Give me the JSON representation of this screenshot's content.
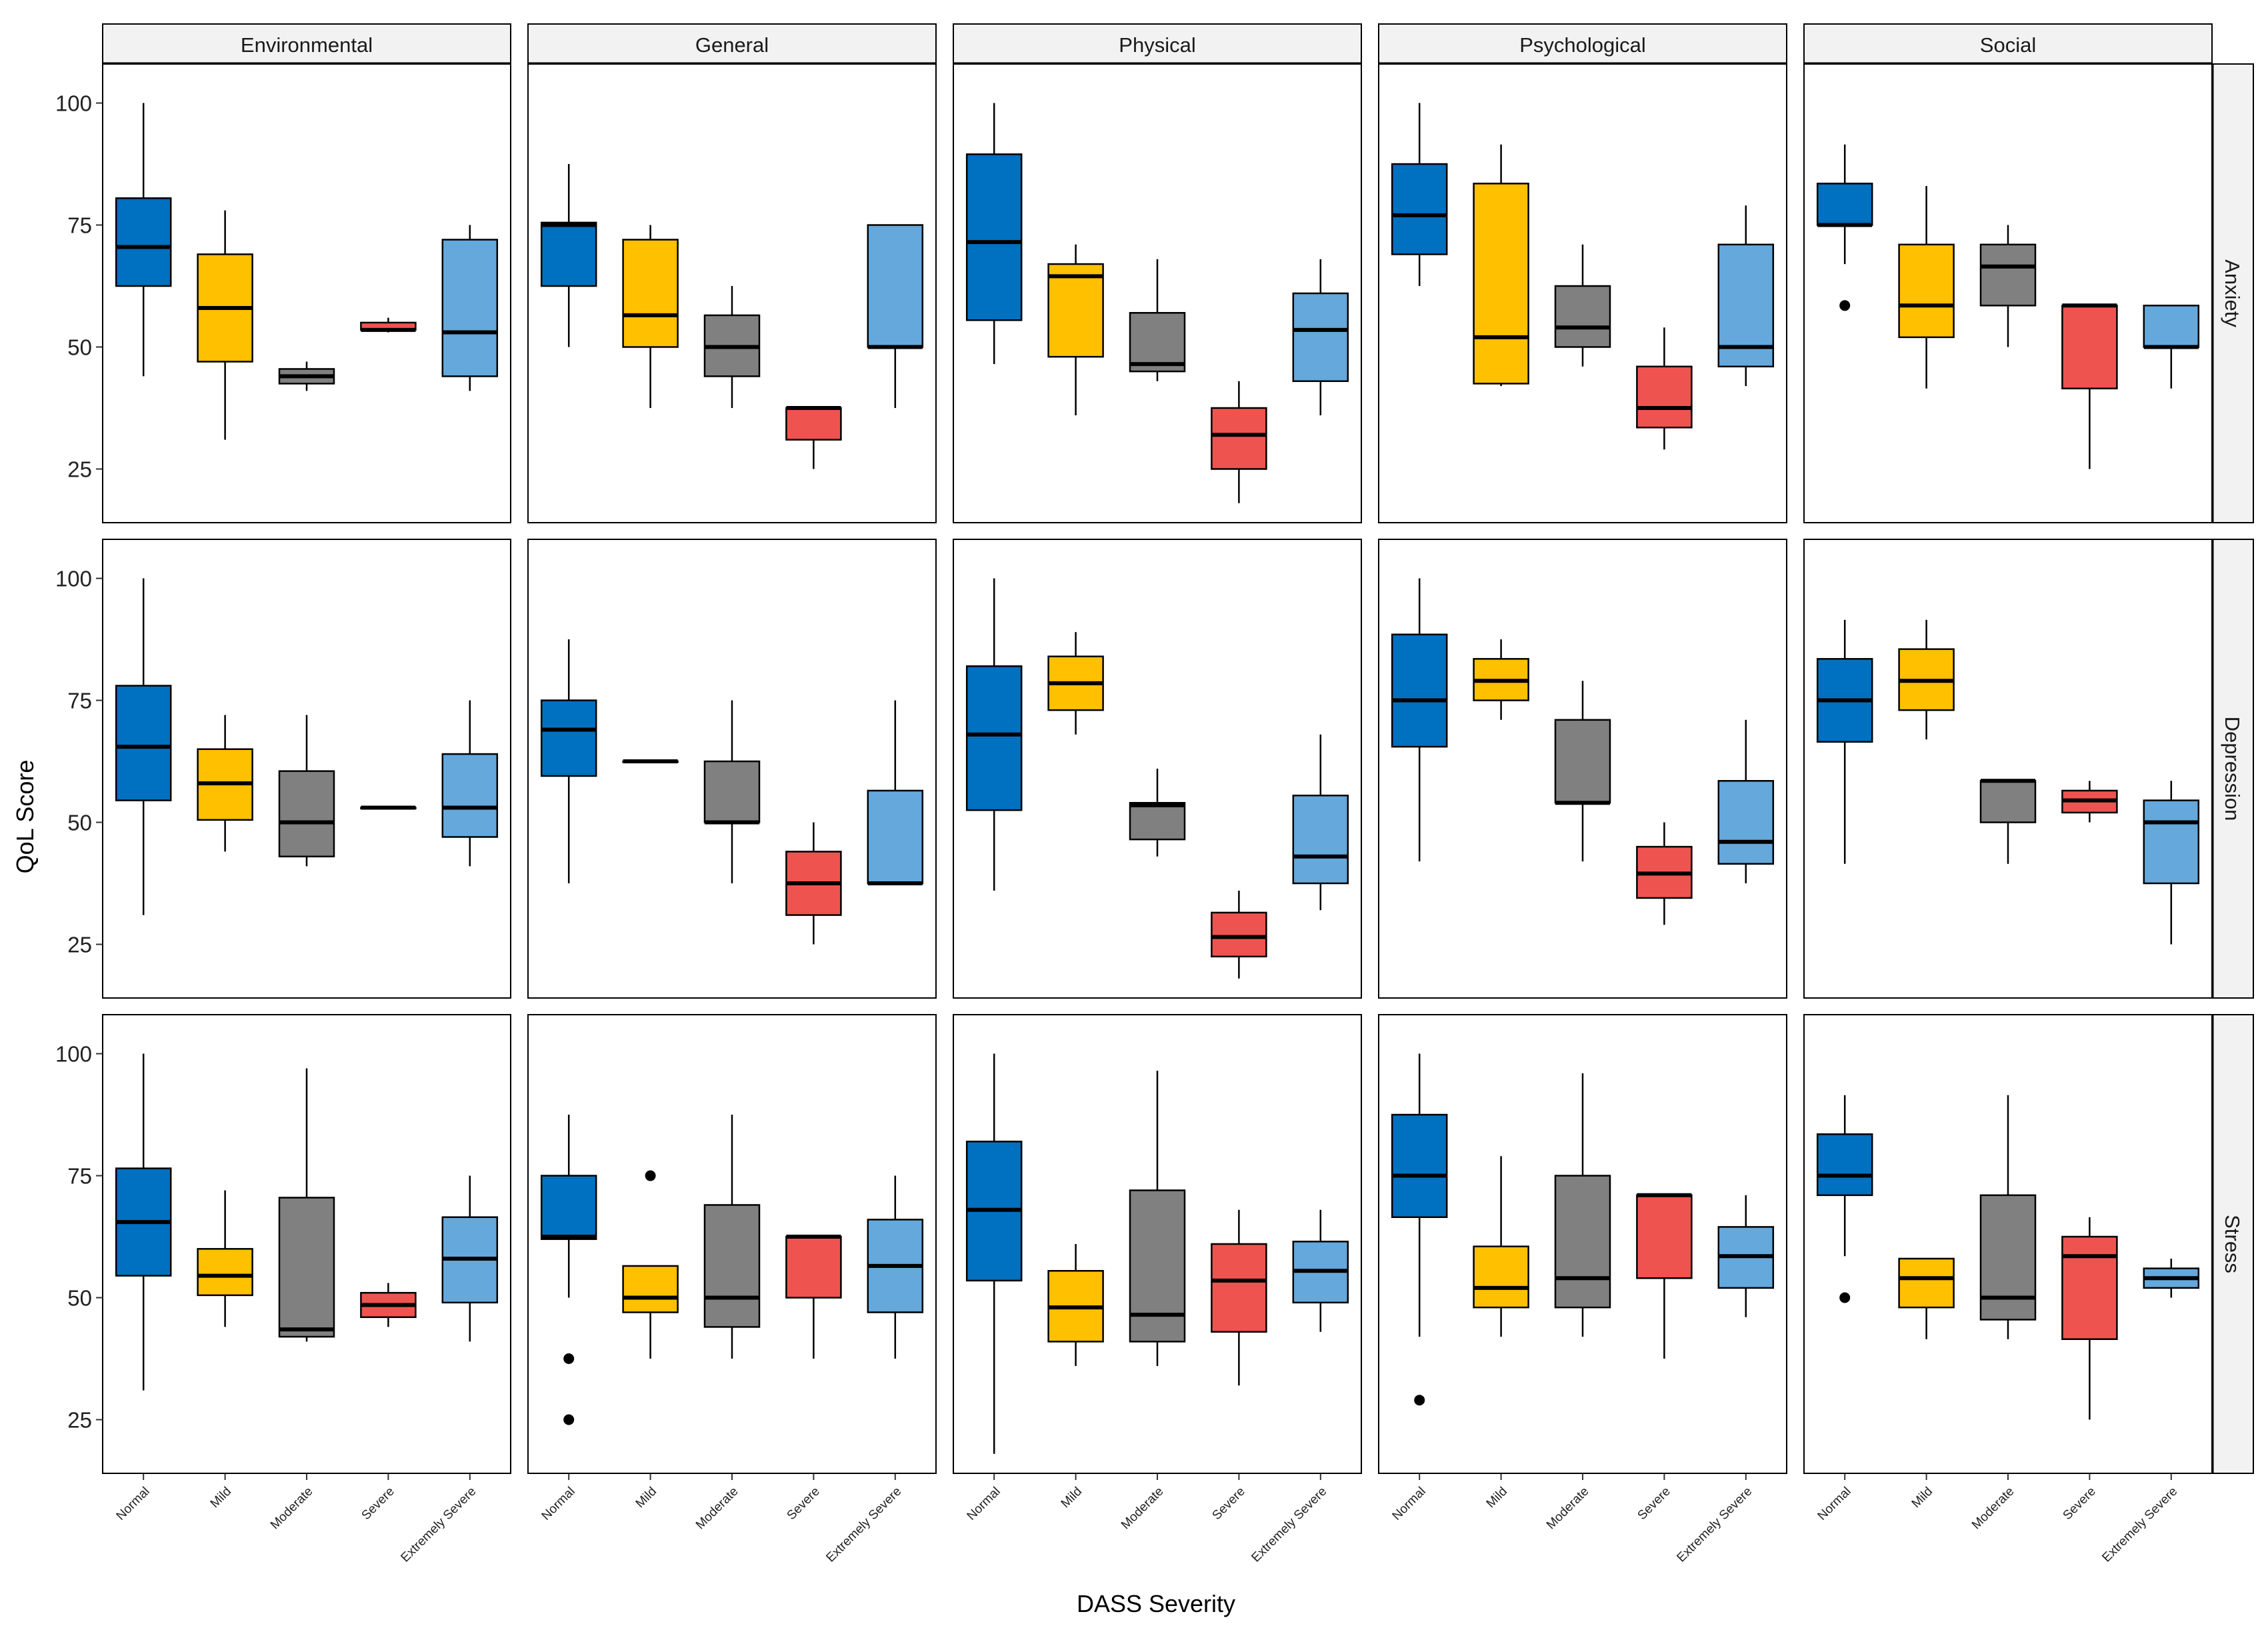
{
  "chart_data": {
    "type": "boxplot",
    "title": "",
    "xlabel": "DASS Severity",
    "ylabel": "QoL Score",
    "ylim": [
      14,
      108
    ],
    "yticks": [
      25,
      50,
      75,
      100
    ],
    "categories": [
      "Normal",
      "Mild",
      "Moderate",
      "Severe",
      "Extremely Severe"
    ],
    "colors": [
      "#0070C0",
      "#FFC000",
      "#808080",
      "#EF5350",
      "#64A8DC"
    ],
    "facet_cols": [
      "Environmental",
      "General",
      "Physical",
      "Psychological",
      "Social"
    ],
    "facet_rows": [
      "Anxiety",
      "Depression",
      "Stress"
    ],
    "panels": [
      {
        "row": "Anxiety",
        "col": "Environmental",
        "boxes": [
          {
            "whisker_low": 44,
            "q1": 62.5,
            "median": 70.5,
            "q3": 80.5,
            "whisker_high": 100,
            "outliers": []
          },
          {
            "whisker_low": 31,
            "q1": 47,
            "median": 58,
            "q3": 69,
            "whisker_high": 78,
            "outliers": []
          },
          {
            "whisker_low": 41,
            "q1": 42.5,
            "median": 44,
            "q3": 45.5,
            "whisker_high": 47,
            "outliers": []
          },
          {
            "whisker_low": 53,
            "q1": 53.5,
            "median": 53.5,
            "q3": 55,
            "whisker_high": 56,
            "outliers": []
          },
          {
            "whisker_low": 41,
            "q1": 44,
            "median": 53,
            "q3": 72,
            "whisker_high": 75,
            "outliers": []
          }
        ]
      },
      {
        "row": "Anxiety",
        "col": "General",
        "boxes": [
          {
            "whisker_low": 50,
            "q1": 62.5,
            "median": 75,
            "q3": 75.5,
            "whisker_high": 87.5,
            "outliers": []
          },
          {
            "whisker_low": 37.5,
            "q1": 50,
            "median": 56.5,
            "q3": 72,
            "whisker_high": 75,
            "outliers": []
          },
          {
            "whisker_low": 37.5,
            "q1": 44,
            "median": 50,
            "q3": 56.5,
            "whisker_high": 62.5,
            "outliers": []
          },
          {
            "whisker_low": 25,
            "q1": 31,
            "median": 37.5,
            "q3": 37.5,
            "whisker_high": 37.5,
            "outliers": []
          },
          {
            "whisker_low": 37.5,
            "q1": 50,
            "median": 50,
            "q3": 75,
            "whisker_high": 75,
            "outliers": []
          }
        ]
      },
      {
        "row": "Anxiety",
        "col": "Physical",
        "boxes": [
          {
            "whisker_low": 46.5,
            "q1": 55.5,
            "median": 71.5,
            "q3": 89.5,
            "whisker_high": 100,
            "outliers": []
          },
          {
            "whisker_low": 36,
            "q1": 48,
            "median": 64.5,
            "q3": 67,
            "whisker_high": 71,
            "outliers": []
          },
          {
            "whisker_low": 43,
            "q1": 45,
            "median": 46.5,
            "q3": 57,
            "whisker_high": 68,
            "outliers": []
          },
          {
            "whisker_low": 18,
            "q1": 25,
            "median": 32,
            "q3": 37.5,
            "whisker_high": 43,
            "outliers": []
          },
          {
            "whisker_low": 36,
            "q1": 43,
            "median": 53.5,
            "q3": 61,
            "whisker_high": 68,
            "outliers": []
          }
        ]
      },
      {
        "row": "Anxiety",
        "col": "Psychological",
        "boxes": [
          {
            "whisker_low": 62.5,
            "q1": 69,
            "median": 77,
            "q3": 87.5,
            "whisker_high": 100,
            "outliers": []
          },
          {
            "whisker_low": 42,
            "q1": 42.5,
            "median": 52,
            "q3": 83.5,
            "whisker_high": 91.5,
            "outliers": []
          },
          {
            "whisker_low": 46,
            "q1": 50,
            "median": 54,
            "q3": 62.5,
            "whisker_high": 71,
            "outliers": []
          },
          {
            "whisker_low": 29,
            "q1": 33.5,
            "median": 37.5,
            "q3": 46,
            "whisker_high": 54,
            "outliers": []
          },
          {
            "whisker_low": 42,
            "q1": 46,
            "median": 50,
            "q3": 71,
            "whisker_high": 79,
            "outliers": []
          }
        ]
      },
      {
        "row": "Anxiety",
        "col": "Social",
        "boxes": [
          {
            "whisker_low": 67,
            "q1": 75,
            "median": 75,
            "q3": 83.5,
            "whisker_high": 91.5,
            "outliers": [
              58.5
            ]
          },
          {
            "whisker_low": 41.5,
            "q1": 52,
            "median": 58.5,
            "q3": 71,
            "whisker_high": 83,
            "outliers": []
          },
          {
            "whisker_low": 50,
            "q1": 58.5,
            "median": 66.5,
            "q3": 71,
            "whisker_high": 75,
            "outliers": []
          },
          {
            "whisker_low": 25,
            "q1": 41.5,
            "median": 58.5,
            "q3": 58.5,
            "whisker_high": 58.5,
            "outliers": []
          },
          {
            "whisker_low": 41.5,
            "q1": 50,
            "median": 50,
            "q3": 58.5,
            "whisker_high": 58.5,
            "outliers": []
          }
        ]
      },
      {
        "row": "Depression",
        "col": "Environmental",
        "boxes": [
          {
            "whisker_low": 31,
            "q1": 54.5,
            "median": 65.5,
            "q3": 78,
            "whisker_high": 100,
            "outliers": []
          },
          {
            "whisker_low": 44,
            "q1": 50.5,
            "median": 58,
            "q3": 65,
            "whisker_high": 72,
            "outliers": []
          },
          {
            "whisker_low": 41,
            "q1": 43,
            "median": 50,
            "q3": 60.5,
            "whisker_high": 72,
            "outliers": []
          },
          {
            "whisker_low": 53,
            "q1": 53,
            "median": 53,
            "q3": 53,
            "whisker_high": 53,
            "outliers": []
          },
          {
            "whisker_low": 41,
            "q1": 47,
            "median": 53,
            "q3": 64,
            "whisker_high": 75,
            "outliers": []
          }
        ]
      },
      {
        "row": "Depression",
        "col": "General",
        "boxes": [
          {
            "whisker_low": 37.5,
            "q1": 59.5,
            "median": 69,
            "q3": 75,
            "whisker_high": 87.5,
            "outliers": []
          },
          {
            "whisker_low": 62.5,
            "q1": 62.5,
            "median": 62.5,
            "q3": 62.5,
            "whisker_high": 62.5,
            "outliers": []
          },
          {
            "whisker_low": 37.5,
            "q1": 50,
            "median": 50,
            "q3": 62.5,
            "whisker_high": 75,
            "outliers": []
          },
          {
            "whisker_low": 25,
            "q1": 31,
            "median": 37.5,
            "q3": 44,
            "whisker_high": 50,
            "outliers": []
          },
          {
            "whisker_low": 37.5,
            "q1": 37.5,
            "median": 37.5,
            "q3": 56.5,
            "whisker_high": 75,
            "outliers": []
          }
        ]
      },
      {
        "row": "Depression",
        "col": "Physical",
        "boxes": [
          {
            "whisker_low": 36,
            "q1": 52.5,
            "median": 68,
            "q3": 82,
            "whisker_high": 100,
            "outliers": []
          },
          {
            "whisker_low": 68,
            "q1": 73,
            "median": 78.5,
            "q3": 84,
            "whisker_high": 89,
            "outliers": []
          },
          {
            "whisker_low": 43,
            "q1": 46.5,
            "median": 53.5,
            "q3": 54,
            "whisker_high": 61,
            "outliers": []
          },
          {
            "whisker_low": 18,
            "q1": 22.5,
            "median": 26.5,
            "q3": 31.5,
            "whisker_high": 36,
            "outliers": []
          },
          {
            "whisker_low": 32,
            "q1": 37.5,
            "median": 43,
            "q3": 55.5,
            "whisker_high": 68,
            "outliers": []
          }
        ]
      },
      {
        "row": "Depression",
        "col": "Psychological",
        "boxes": [
          {
            "whisker_low": 42,
            "q1": 65.5,
            "median": 75,
            "q3": 88.5,
            "whisker_high": 100,
            "outliers": []
          },
          {
            "whisker_low": 71,
            "q1": 75,
            "median": 79,
            "q3": 83.5,
            "whisker_high": 87.5,
            "outliers": []
          },
          {
            "whisker_low": 42,
            "q1": 54,
            "median": 54,
            "q3": 71,
            "whisker_high": 79,
            "outliers": []
          },
          {
            "whisker_low": 29,
            "q1": 34.5,
            "median": 39.5,
            "q3": 45,
            "whisker_high": 50,
            "outliers": []
          },
          {
            "whisker_low": 37.5,
            "q1": 41.5,
            "median": 46,
            "q3": 58.5,
            "whisker_high": 71,
            "outliers": []
          }
        ]
      },
      {
        "row": "Depression",
        "col": "Social",
        "boxes": [
          {
            "whisker_low": 41.5,
            "q1": 66.5,
            "median": 75,
            "q3": 83.5,
            "whisker_high": 91.5,
            "outliers": []
          },
          {
            "whisker_low": 67,
            "q1": 73,
            "median": 79,
            "q3": 85.5,
            "whisker_high": 91.5,
            "outliers": []
          },
          {
            "whisker_low": 41.5,
            "q1": 50,
            "median": 58.5,
            "q3": 58.5,
            "whisker_high": 58.5,
            "outliers": []
          },
          {
            "whisker_low": 50,
            "q1": 52,
            "median": 54.5,
            "q3": 56.5,
            "whisker_high": 58.5,
            "outliers": []
          },
          {
            "whisker_low": 25,
            "q1": 37.5,
            "median": 50,
            "q3": 54.5,
            "whisker_high": 58.5,
            "outliers": []
          }
        ]
      },
      {
        "row": "Stress",
        "col": "Environmental",
        "boxes": [
          {
            "whisker_low": 31,
            "q1": 54.5,
            "median": 65.5,
            "q3": 76.5,
            "whisker_high": 100,
            "outliers": []
          },
          {
            "whisker_low": 44,
            "q1": 50.5,
            "median": 54.5,
            "q3": 60,
            "whisker_high": 72,
            "outliers": []
          },
          {
            "whisker_low": 41,
            "q1": 42,
            "median": 43.5,
            "q3": 70.5,
            "whisker_high": 97,
            "outliers": []
          },
          {
            "whisker_low": 44,
            "q1": 46,
            "median": 48.5,
            "q3": 51,
            "whisker_high": 53,
            "outliers": []
          },
          {
            "whisker_low": 41,
            "q1": 49,
            "median": 58,
            "q3": 66.5,
            "whisker_high": 75,
            "outliers": []
          }
        ]
      },
      {
        "row": "Stress",
        "col": "General",
        "boxes": [
          {
            "whisker_low": 50,
            "q1": 62,
            "median": 62.5,
            "q3": 75,
            "whisker_high": 87.5,
            "outliers": [
              37.5,
              25
            ]
          },
          {
            "whisker_low": 37.5,
            "q1": 47,
            "median": 50,
            "q3": 56.5,
            "whisker_high": 56.5,
            "outliers": [
              75
            ]
          },
          {
            "whisker_low": 37.5,
            "q1": 44,
            "median": 50,
            "q3": 69,
            "whisker_high": 87.5,
            "outliers": []
          },
          {
            "whisker_low": 37.5,
            "q1": 50,
            "median": 62.5,
            "q3": 62.5,
            "whisker_high": 62.5,
            "outliers": []
          },
          {
            "whisker_low": 37.5,
            "q1": 47,
            "median": 56.5,
            "q3": 66,
            "whisker_high": 75,
            "outliers": []
          }
        ]
      },
      {
        "row": "Stress",
        "col": "Physical",
        "boxes": [
          {
            "whisker_low": 18,
            "q1": 53.5,
            "median": 68,
            "q3": 82,
            "whisker_high": 100,
            "outliers": []
          },
          {
            "whisker_low": 36,
            "q1": 41,
            "median": 48,
            "q3": 55.5,
            "whisker_high": 61,
            "outliers": []
          },
          {
            "whisker_low": 36,
            "q1": 41,
            "median": 46.5,
            "q3": 72,
            "whisker_high": 96.5,
            "outliers": []
          },
          {
            "whisker_low": 32,
            "q1": 43,
            "median": 53.5,
            "q3": 61,
            "whisker_high": 68,
            "outliers": []
          },
          {
            "whisker_low": 43,
            "q1": 49,
            "median": 55.5,
            "q3": 61.5,
            "whisker_high": 68,
            "outliers": []
          }
        ]
      },
      {
        "row": "Stress",
        "col": "Psychological",
        "boxes": [
          {
            "whisker_low": 42,
            "q1": 66.5,
            "median": 75,
            "q3": 87.5,
            "whisker_high": 100,
            "outliers": [
              29
            ]
          },
          {
            "whisker_low": 42,
            "q1": 48,
            "median": 52,
            "q3": 60.5,
            "whisker_high": 79,
            "outliers": []
          },
          {
            "whisker_low": 42,
            "q1": 48,
            "median": 54,
            "q3": 75,
            "whisker_high": 96,
            "outliers": []
          },
          {
            "whisker_low": 37.5,
            "q1": 54,
            "median": 71,
            "q3": 71,
            "whisker_high": 71,
            "outliers": []
          },
          {
            "whisker_low": 46,
            "q1": 52,
            "median": 58.5,
            "q3": 64.5,
            "whisker_high": 71,
            "outliers": []
          }
        ]
      },
      {
        "row": "Stress",
        "col": "Social",
        "boxes": [
          {
            "whisker_low": 58.5,
            "q1": 71,
            "median": 75,
            "q3": 83.5,
            "whisker_high": 91.5,
            "outliers": [
              50
            ]
          },
          {
            "whisker_low": 41.5,
            "q1": 48,
            "median": 54,
            "q3": 58,
            "whisker_high": 58,
            "outliers": []
          },
          {
            "whisker_low": 41.5,
            "q1": 45.5,
            "median": 50,
            "q3": 71,
            "whisker_high": 91.5,
            "outliers": []
          },
          {
            "whisker_low": 25,
            "q1": 41.5,
            "median": 58.5,
            "q3": 62.5,
            "whisker_high": 66.5,
            "outliers": []
          },
          {
            "whisker_low": 50,
            "q1": 52,
            "median": 54,
            "q3": 56,
            "whisker_high": 58,
            "outliers": []
          }
        ]
      }
    ]
  }
}
